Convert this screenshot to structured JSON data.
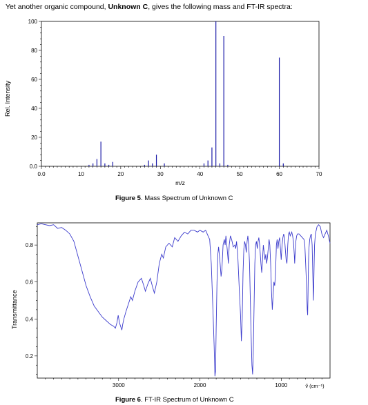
{
  "intro": {
    "prefix": "Yet another organic compound, ",
    "compound": "Unknown C",
    "suffix": ", gives the following mass and FT-IR spectra:"
  },
  "colors": {
    "ms_bar": "#1a1aa8",
    "ir_line": "#3a3acc",
    "axis": "#000000"
  },
  "chart_data": [
    {
      "type": "bar",
      "name_key": "mass_spectrum",
      "title": "",
      "caption_label": "Figure 5",
      "caption_text": ". Mass Spectrum of Unknown C",
      "xlabel": "m/z",
      "ylabel": "Rel. Intensity",
      "xlim": [
        0,
        70
      ],
      "ylim": [
        0,
        100
      ],
      "xticks": [
        "0.0",
        "10",
        "20",
        "30",
        "40",
        "50",
        "60",
        "70"
      ],
      "yticks": [
        "0.0",
        "20",
        "40",
        "60",
        "80",
        "100"
      ],
      "grid": false,
      "points": [
        {
          "x": 12,
          "y": 1
        },
        {
          "x": 13,
          "y": 2
        },
        {
          "x": 14,
          "y": 5
        },
        {
          "x": 15,
          "y": 17
        },
        {
          "x": 16,
          "y": 2
        },
        {
          "x": 17,
          "y": 1
        },
        {
          "x": 18,
          "y": 3
        },
        {
          "x": 26,
          "y": 1
        },
        {
          "x": 27,
          "y": 4
        },
        {
          "x": 28,
          "y": 2
        },
        {
          "x": 29,
          "y": 8
        },
        {
          "x": 31,
          "y": 2
        },
        {
          "x": 41,
          "y": 2
        },
        {
          "x": 42,
          "y": 4
        },
        {
          "x": 43,
          "y": 13
        },
        {
          "x": 44,
          "y": 100
        },
        {
          "x": 45,
          "y": 2
        },
        {
          "x": 46,
          "y": 90
        },
        {
          "x": 47,
          "y": 1
        },
        {
          "x": 60,
          "y": 75
        },
        {
          "x": 61,
          "y": 2
        }
      ]
    },
    {
      "type": "line",
      "name_key": "ir_spectrum",
      "title": "",
      "caption_label": "Figure 6",
      "caption_text": ". FT-IR Spectrum of Unknown C",
      "xlabel": "ṽ (cm⁻¹)",
      "ylabel": "Transmittance",
      "xlim": [
        4000,
        400
      ],
      "ylim": [
        0.08,
        0.92
      ],
      "xticks": [
        "3000",
        "2000",
        "1000"
      ],
      "yticks": [
        "0.2",
        "0.4",
        "0.6",
        "0.8"
      ],
      "grid": false,
      "points": [
        [
          4000,
          0.91
        ],
        [
          3950,
          0.915
        ],
        [
          3900,
          0.91
        ],
        [
          3850,
          0.905
        ],
        [
          3800,
          0.91
        ],
        [
          3750,
          0.89
        ],
        [
          3700,
          0.895
        ],
        [
          3650,
          0.88
        ],
        [
          3600,
          0.86
        ],
        [
          3550,
          0.82
        ],
        [
          3500,
          0.74
        ],
        [
          3450,
          0.66
        ],
        [
          3400,
          0.58
        ],
        [
          3350,
          0.52
        ],
        [
          3300,
          0.47
        ],
        [
          3250,
          0.44
        ],
        [
          3200,
          0.41
        ],
        [
          3150,
          0.39
        ],
        [
          3100,
          0.37
        ],
        [
          3060,
          0.36
        ],
        [
          3040,
          0.35
        ],
        [
          3020,
          0.38
        ],
        [
          3005,
          0.42
        ],
        [
          2990,
          0.38
        ],
        [
          2975,
          0.36
        ],
        [
          2960,
          0.34
        ],
        [
          2950,
          0.37
        ],
        [
          2935,
          0.4
        ],
        [
          2910,
          0.44
        ],
        [
          2880,
          0.48
        ],
        [
          2850,
          0.52
        ],
        [
          2830,
          0.5
        ],
        [
          2800,
          0.55
        ],
        [
          2760,
          0.6
        ],
        [
          2720,
          0.62
        ],
        [
          2690,
          0.58
        ],
        [
          2670,
          0.55
        ],
        [
          2640,
          0.59
        ],
        [
          2610,
          0.62
        ],
        [
          2580,
          0.57
        ],
        [
          2560,
          0.54
        ],
        [
          2530,
          0.6
        ],
        [
          2500,
          0.7
        ],
        [
          2470,
          0.75
        ],
        [
          2450,
          0.73
        ],
        [
          2420,
          0.79
        ],
        [
          2380,
          0.81
        ],
        [
          2340,
          0.79
        ],
        [
          2310,
          0.84
        ],
        [
          2270,
          0.82
        ],
        [
          2230,
          0.85
        ],
        [
          2190,
          0.87
        ],
        [
          2150,
          0.86
        ],
        [
          2110,
          0.88
        ],
        [
          2070,
          0.88
        ],
        [
          2030,
          0.87
        ],
        [
          2000,
          0.88
        ],
        [
          1960,
          0.87
        ],
        [
          1930,
          0.88
        ],
        [
          1900,
          0.85
        ],
        [
          1880,
          0.83
        ],
        [
          1860,
          0.7
        ],
        [
          1840,
          0.45
        ],
        [
          1825,
          0.25
        ],
        [
          1815,
          0.09
        ],
        [
          1808,
          0.12
        ],
        [
          1800,
          0.35
        ],
        [
          1790,
          0.6
        ],
        [
          1780,
          0.75
        ],
        [
          1770,
          0.79
        ],
        [
          1755,
          0.72
        ],
        [
          1740,
          0.63
        ],
        [
          1730,
          0.67
        ],
        [
          1715,
          0.8
        ],
        [
          1700,
          0.83
        ],
        [
          1690,
          0.8
        ],
        [
          1680,
          0.85
        ],
        [
          1665,
          0.78
        ],
        [
          1650,
          0.7
        ],
        [
          1640,
          0.8
        ],
        [
          1625,
          0.85
        ],
        [
          1610,
          0.83
        ],
        [
          1590,
          0.79
        ],
        [
          1570,
          0.8
        ],
        [
          1560,
          0.78
        ],
        [
          1550,
          0.82
        ],
        [
          1535,
          0.75
        ],
        [
          1515,
          0.55
        ],
        [
          1500,
          0.42
        ],
        [
          1490,
          0.28
        ],
        [
          1480,
          0.4
        ],
        [
          1470,
          0.65
        ],
        [
          1460,
          0.78
        ],
        [
          1450,
          0.82
        ],
        [
          1440,
          0.8
        ],
        [
          1430,
          0.76
        ],
        [
          1420,
          0.82
        ],
        [
          1410,
          0.85
        ],
        [
          1400,
          0.8
        ],
        [
          1390,
          0.7
        ],
        [
          1380,
          0.5
        ],
        [
          1370,
          0.3
        ],
        [
          1360,
          0.15
        ],
        [
          1352,
          0.1
        ],
        [
          1345,
          0.2
        ],
        [
          1335,
          0.45
        ],
        [
          1325,
          0.7
        ],
        [
          1315,
          0.8
        ],
        [
          1305,
          0.82
        ],
        [
          1295,
          0.78
        ],
        [
          1285,
          0.82
        ],
        [
          1275,
          0.84
        ],
        [
          1265,
          0.8
        ],
        [
          1250,
          0.7
        ],
        [
          1240,
          0.65
        ],
        [
          1230,
          0.72
        ],
        [
          1220,
          0.8
        ],
        [
          1210,
          0.76
        ],
        [
          1200,
          0.72
        ],
        [
          1190,
          0.75
        ],
        [
          1180,
          0.7
        ],
        [
          1170,
          0.73
        ],
        [
          1160,
          0.78
        ],
        [
          1150,
          0.83
        ],
        [
          1140,
          0.8
        ],
        [
          1130,
          0.7
        ],
        [
          1120,
          0.55
        ],
        [
          1110,
          0.45
        ],
        [
          1100,
          0.53
        ],
        [
          1090,
          0.6
        ],
        [
          1080,
          0.58
        ],
        [
          1070,
          0.65
        ],
        [
          1060,
          0.8
        ],
        [
          1050,
          0.83
        ],
        [
          1040,
          0.78
        ],
        [
          1030,
          0.82
        ],
        [
          1020,
          0.84
        ],
        [
          1010,
          0.78
        ],
        [
          1000,
          0.72
        ],
        [
          990,
          0.8
        ],
        [
          980,
          0.84
        ],
        [
          970,
          0.86
        ],
        [
          960,
          0.84
        ],
        [
          950,
          0.78
        ],
        [
          940,
          0.72
        ],
        [
          930,
          0.7
        ],
        [
          920,
          0.8
        ],
        [
          910,
          0.86
        ],
        [
          900,
          0.87
        ],
        [
          890,
          0.85
        ],
        [
          880,
          0.86
        ],
        [
          870,
          0.87
        ],
        [
          860,
          0.85
        ],
        [
          850,
          0.82
        ],
        [
          840,
          0.75
        ],
        [
          835,
          0.7
        ],
        [
          830,
          0.75
        ],
        [
          820,
          0.82
        ],
        [
          810,
          0.85
        ],
        [
          800,
          0.86
        ],
        [
          780,
          0.86
        ],
        [
          760,
          0.85
        ],
        [
          740,
          0.84
        ],
        [
          720,
          0.83
        ],
        [
          710,
          0.8
        ],
        [
          700,
          0.7
        ],
        [
          690,
          0.6
        ],
        [
          680,
          0.45
        ],
        [
          675,
          0.42
        ],
        [
          670,
          0.55
        ],
        [
          665,
          0.7
        ],
        [
          660,
          0.78
        ],
        [
          650,
          0.83
        ],
        [
          640,
          0.85
        ],
        [
          630,
          0.86
        ],
        [
          620,
          0.8
        ],
        [
          610,
          0.6
        ],
        [
          605,
          0.5
        ],
        [
          600,
          0.58
        ],
        [
          595,
          0.7
        ],
        [
          590,
          0.8
        ],
        [
          580,
          0.86
        ],
        [
          560,
          0.9
        ],
        [
          540,
          0.91
        ],
        [
          520,
          0.9
        ],
        [
          510,
          0.88
        ],
        [
          500,
          0.86
        ],
        [
          480,
          0.84
        ],
        [
          460,
          0.86
        ],
        [
          440,
          0.88
        ],
        [
          420,
          0.85
        ],
        [
          400,
          0.81
        ]
      ]
    }
  ]
}
